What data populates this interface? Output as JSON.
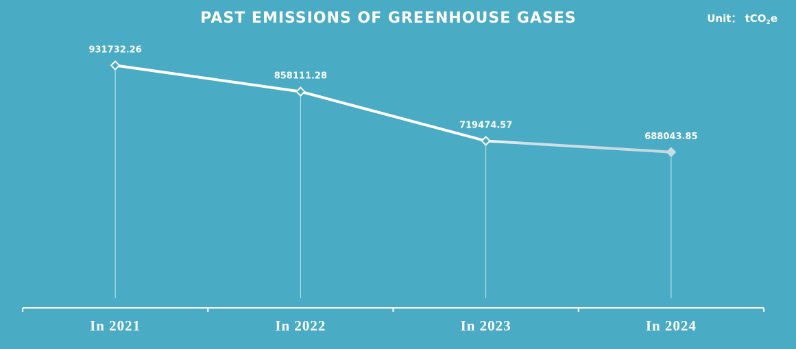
{
  "chart_data": {
    "type": "line",
    "title": "PAST EMISSIONS OF GREENHOUSE GASES",
    "unit": {
      "prefix": "Unit： tCO",
      "subscript": "2",
      "suffix": "e"
    },
    "categories": [
      "In 2021",
      "In 2022",
      "In 2023",
      "In 2024"
    ],
    "series": [
      {
        "values": [
          931732.26,
          858111.28,
          719474.57,
          688043.85
        ],
        "labels": [
          "931732.26",
          "858111.28",
          "719474.57",
          "688043.85"
        ]
      }
    ],
    "ylim": [
      250000,
      1000000
    ],
    "grid": false,
    "colors": {
      "background": "#4aabc5",
      "line": "#ffffff",
      "line_faded": "#c9dde4",
      "axis": "#ffffff"
    }
  }
}
